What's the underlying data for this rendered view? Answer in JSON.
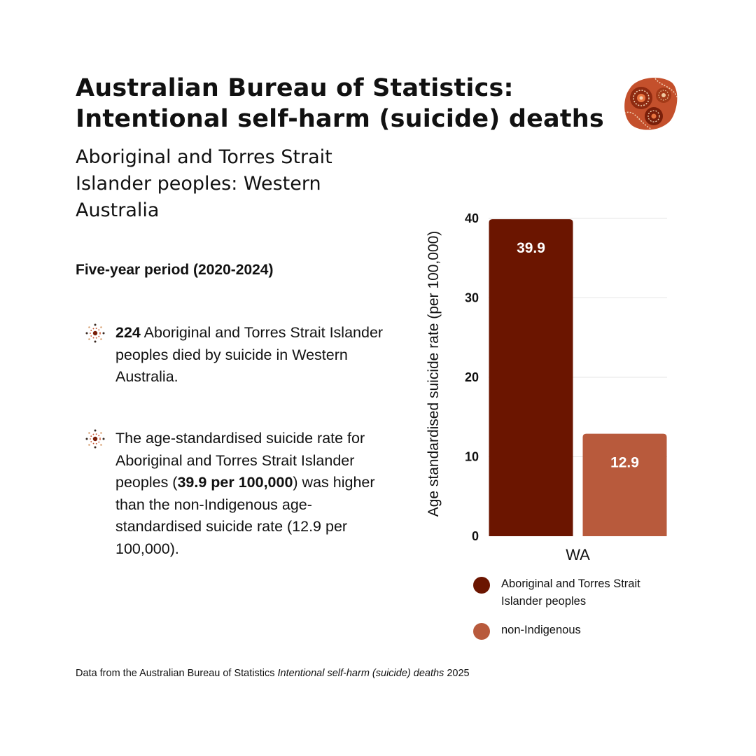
{
  "header": {
    "title_line1": "Australian Bureau of Statistics:",
    "title_line2": "Intentional self-harm (suicide) deaths",
    "subtitle": "Aboriginal and Torres Strait Islander peoples: Western Australia",
    "logo_icon": "aboriginal-art-stone-icon"
  },
  "main": {
    "period_heading": "Five-year period (2020-2024)",
    "bullet1": {
      "icon": "dot-art-icon",
      "strong": "224",
      "text": " Aboriginal and Torres Strait Islander peoples died by suicide in Western Australia."
    },
    "bullet2": {
      "icon": "dot-art-icon",
      "text_a": "The age-standardised suicide rate for Aboriginal and Torres Strait Islander peoples (",
      "strong": "39.9 per 100,000",
      "text_b": ") was higher than the non-Indigenous age-standardised suicide rate (12.9 per 100,000)."
    }
  },
  "footnote": {
    "prefix": "Data from the Australian Bureau of Statistics ",
    "italic": "Intentional self-harm (suicide) deaths",
    "suffix": " 2025"
  },
  "colors": {
    "indigenous": "#6B1500",
    "non_indigenous": "#B85A3C",
    "grid": "#e6e6e6"
  },
  "chart_data": {
    "type": "bar",
    "categories": [
      "WA"
    ],
    "series": [
      {
        "name": "Aboriginal and Torres Strait Islander peoples",
        "values": [
          39.9
        ],
        "color": "#6B1500"
      },
      {
        "name": "non-Indigenous",
        "values": [
          12.9
        ],
        "color": "#B85A3C"
      }
    ],
    "ylabel": "Age standardised suicide rate (per 100,000)",
    "xlabel": "",
    "ylim": [
      0,
      40
    ],
    "yticks": [
      0,
      10,
      20,
      30,
      40
    ],
    "data_labels": [
      "39.9",
      "12.9"
    ],
    "grid": true,
    "legend_position": "bottom"
  }
}
